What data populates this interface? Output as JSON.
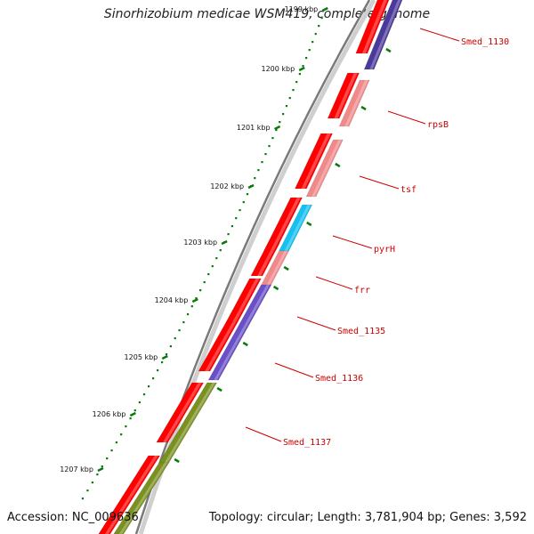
{
  "title": "Sinorhizobium medicae WSM419, complete genome",
  "footer": {
    "accession": "Accession: NC_009636",
    "summary": "Topology: circular; Length: 3,781,904 bp; Genes: 3,592"
  },
  "colors": {
    "label": "#cc0000",
    "tick": "#0a7a0a",
    "cds": "#ff0000",
    "ring": "#8a8a8a"
  },
  "kbp_ticks": [
    "1199 kbp",
    "1200 kbp",
    "1201 kbp",
    "1202 kbp",
    "1203 kbp",
    "1204 kbp",
    "1205 kbp",
    "1206 kbp",
    "1207 kbp"
  ],
  "genes": [
    {
      "label": "Smed_1130",
      "color": "#4b3a9a"
    },
    {
      "label": "rpsB",
      "color": "#f08a8a"
    },
    {
      "label": "tsf",
      "color": "#f08a8a"
    },
    {
      "label": "pyrH",
      "color": "#16c0f0"
    },
    {
      "label": "frr",
      "color": "#f08a8a"
    },
    {
      "label": "Smed_1135",
      "color": "#6a50c8"
    },
    {
      "label": "Smed_1136",
      "color": "#6a50c8"
    },
    {
      "label": "Smed_1137",
      "color": "#7a9020"
    },
    {
      "label": "",
      "color": "#7a9020"
    }
  ]
}
